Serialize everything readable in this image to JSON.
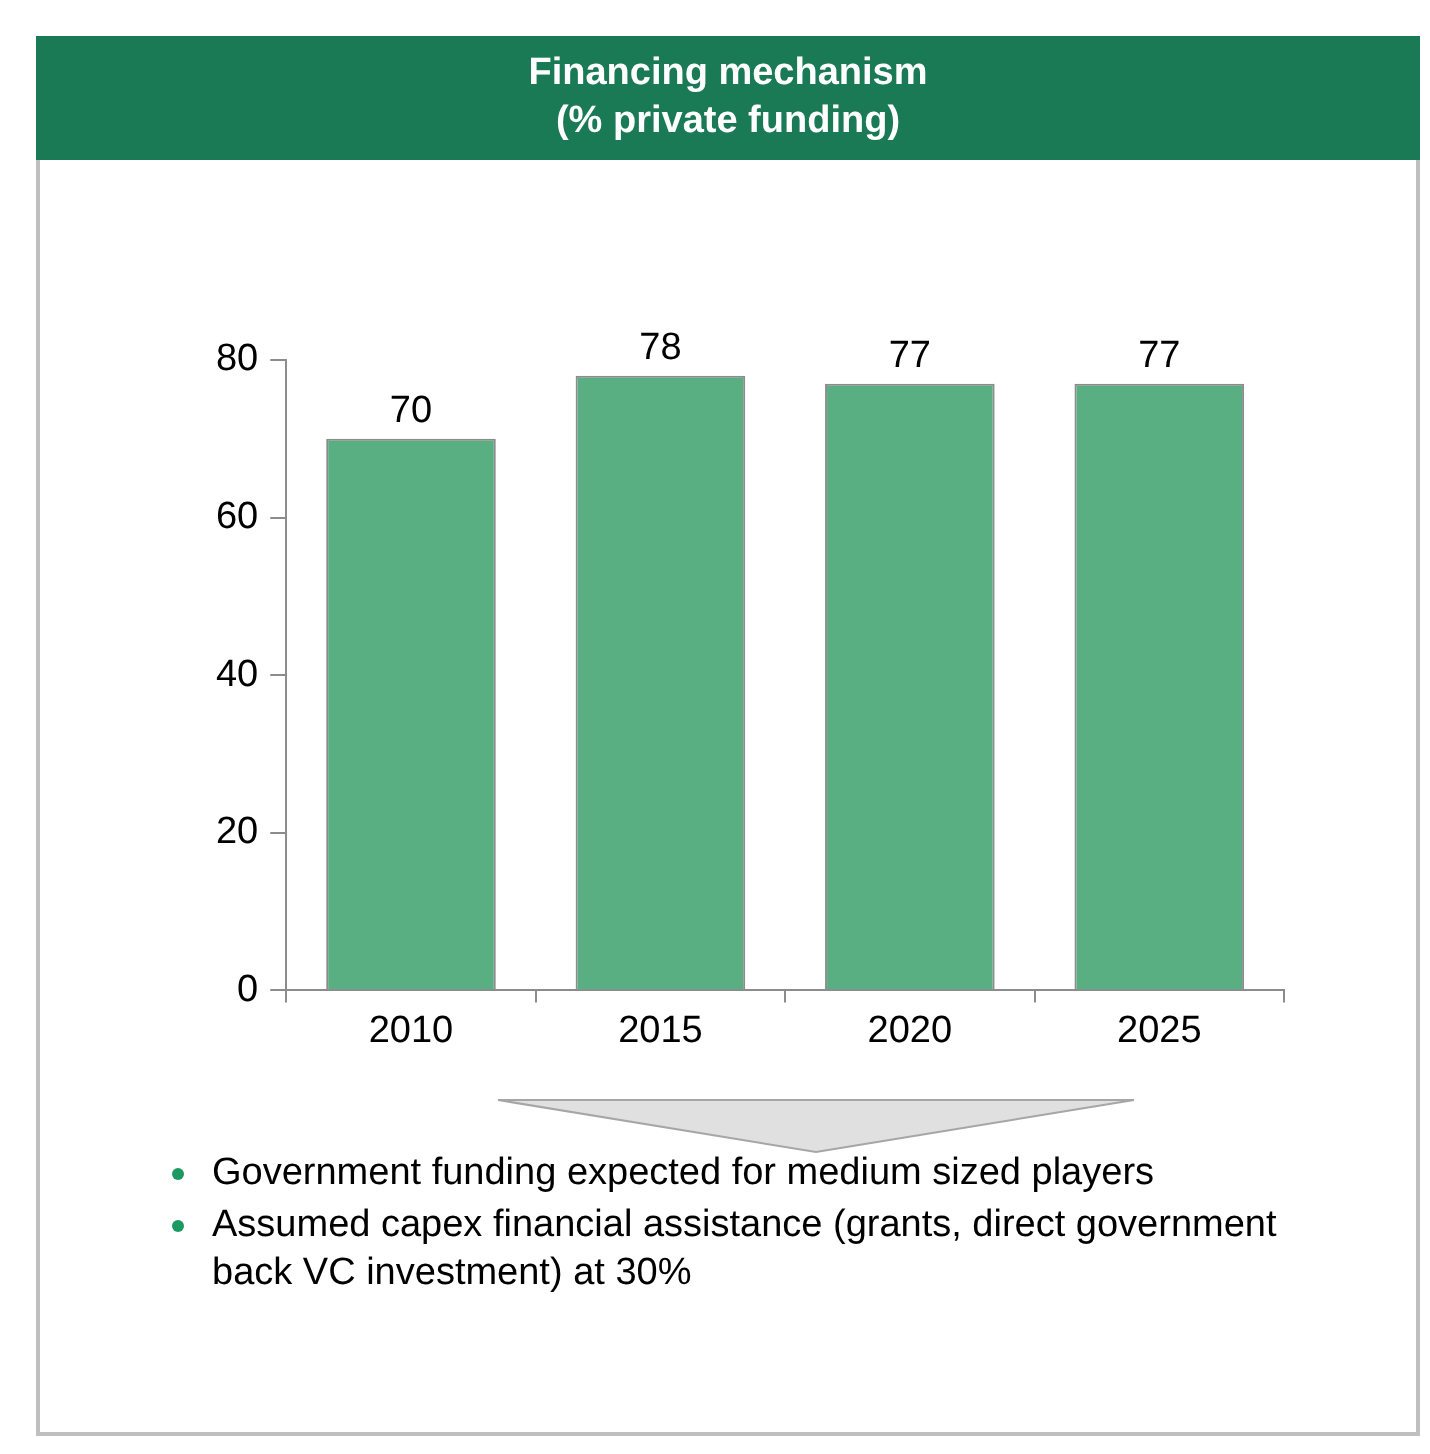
{
  "chart_data": {
    "type": "bar",
    "title": "Financing mechanism",
    "subtitle": "(% private funding)",
    "categories": [
      "2010",
      "2015",
      "2020",
      "2025"
    ],
    "values": [
      70,
      78,
      77,
      77
    ],
    "color": "#5aaf82",
    "ylim": [
      0,
      80
    ],
    "yticks": [
      0,
      20,
      40,
      60,
      80
    ],
    "grid": false,
    "data_labels": true,
    "annotations": [
      "Government funding expected for medium sized players",
      "Assumed capex financial assistance (grants, direct government back VC investment) at 30%"
    ]
  }
}
